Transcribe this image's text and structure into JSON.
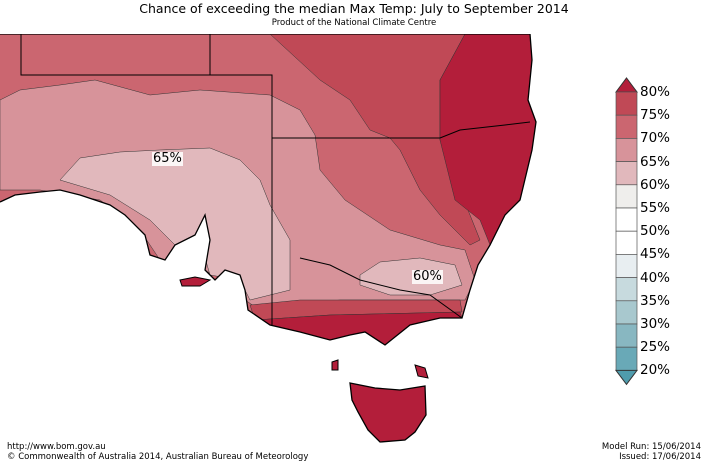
{
  "header": {
    "title": "Chance of exceeding the median Max Temp: July to September 2014",
    "subtitle": "Product of the National Climate Centre"
  },
  "map": {
    "labels": [
      "65%",
      "60%"
    ],
    "colors": {
      "above80": "#b31e3a",
      "75_80": "#c04956",
      "70_75": "#cb6670",
      "65_70": "#d7939a",
      "60_65": "#e1b8bc"
    }
  },
  "legend": {
    "ticks": [
      "80%",
      "75%",
      "70%",
      "65%",
      "60%",
      "55%",
      "50%",
      "45%",
      "40%",
      "35%",
      "30%",
      "25%",
      "20%"
    ],
    "colors": [
      "#c04956",
      "#cb6670",
      "#d7939a",
      "#e1b8bc",
      "#efeeec",
      "#ffffff",
      "#ffffff",
      "#e8eef1",
      "#c7dade",
      "#a8c8ce",
      "#88b7c1",
      "#69a9b7"
    ],
    "top_arrow_color": "#b31e3a",
    "bottom_arrow_color": "#4f9cad"
  },
  "footer": {
    "url": "http://www.bom.gov.au",
    "copyright": "©  Commonwealth of Australia 2014, Australian Bureau of Meteorology",
    "model_run": "Model Run: 15/06/2014",
    "issued": "Issued: 17/06/2014"
  }
}
